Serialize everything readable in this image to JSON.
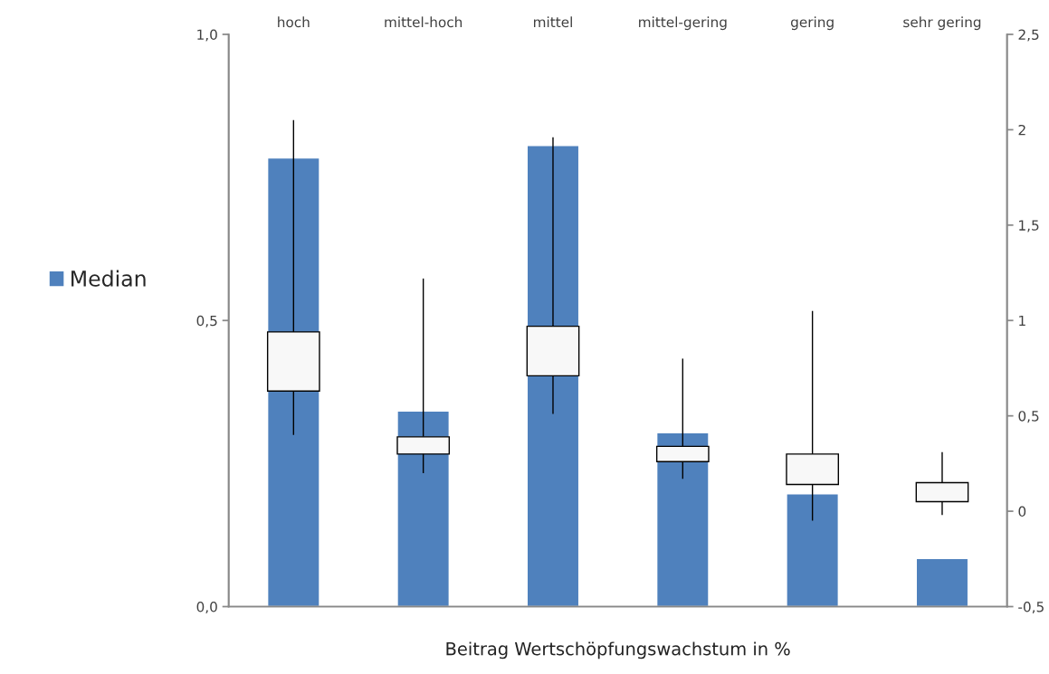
{
  "chart_data": {
    "type": "bar",
    "categories": [
      "hoch",
      "mittel-hoch",
      "mittel",
      "mittel-gering",
      "gering",
      "sehr gering"
    ],
    "xlabel": "Beitrag Wertschöpfungswachstum in %",
    "series": [
      {
        "name": "Median",
        "color": "#4f81bd",
        "values": [
          0.784,
          0.342,
          0.806,
          0.304,
          0.197,
          0.084
        ]
      },
      {
        "type": "candlestick",
        "axis": "y2",
        "color": "#f8f8f8",
        "ohlc": [
          [
            0.63,
            2.05,
            0.4,
            0.94
          ],
          [
            0.3,
            1.22,
            0.2,
            0.39
          ],
          [
            0.71,
            1.96,
            0.51,
            0.97
          ],
          [
            0.26,
            0.8,
            0.17,
            0.34
          ],
          [
            0.14,
            1.05,
            -0.05,
            0.3
          ],
          [
            0.05,
            0.31,
            -0.02,
            0.15
          ]
        ]
      }
    ],
    "ylim": [
      0,
      1
    ],
    "yticks": [
      {
        "value": 0,
        "label": "0,0"
      },
      {
        "value": 0.5,
        "label": "0,5"
      },
      {
        "value": 1,
        "label": "1,0"
      }
    ],
    "y2lim": [
      -0.5,
      2.5
    ],
    "y2ticks": [
      {
        "value": -0.5,
        "label": "-0,5"
      },
      0,
      {
        "value": 0.5,
        "label": "0,5"
      },
      1,
      {
        "value": 1.5,
        "label": "1,5"
      },
      2,
      {
        "value": 2.5,
        "label": "2,5"
      }
    ],
    "legend": "left",
    "grid": false
  }
}
